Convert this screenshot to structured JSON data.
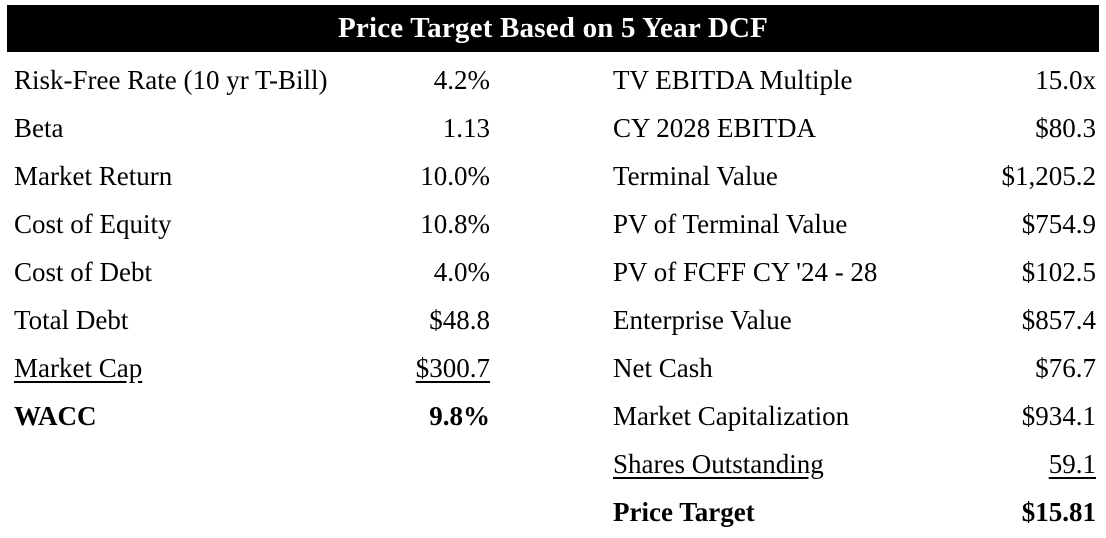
{
  "chart_data": {
    "type": "table",
    "title": "Price Target Based on 5 Year DCF",
    "layout_hint": "two side-by-side label/value column groups under a black title banner",
    "colors": {
      "header_bg": "#000000",
      "header_text": "#ffffff",
      "body_text": "#000000",
      "background": "#ffffff"
    },
    "left_section": {
      "rows": [
        {
          "label": "Risk-Free Rate (10 yr T-Bill)",
          "value": "4.2%",
          "emphasis": "normal"
        },
        {
          "label": "Beta",
          "value": "1.13",
          "emphasis": "normal"
        },
        {
          "label": "Market Return",
          "value": "10.0%",
          "emphasis": "normal"
        },
        {
          "label": "Cost of Equity",
          "value": "10.8%",
          "emphasis": "normal"
        },
        {
          "label": "Cost of Debt",
          "value": "4.0%",
          "emphasis": "normal"
        },
        {
          "label": "Total Debt",
          "value": "$48.8",
          "emphasis": "normal"
        },
        {
          "label": "Market Cap",
          "value": "$300.7",
          "emphasis": "underline"
        },
        {
          "label": "WACC",
          "value": "9.8%",
          "emphasis": "bold"
        }
      ]
    },
    "right_section": {
      "rows": [
        {
          "label": "TV EBITDA Multiple",
          "value": "15.0x",
          "emphasis": "normal"
        },
        {
          "label": "CY 2028 EBITDA",
          "value": "$80.3",
          "emphasis": "normal"
        },
        {
          "label": "Terminal Value",
          "value": "$1,205.2",
          "emphasis": "normal"
        },
        {
          "label": "PV of Terminal Value",
          "value": "$754.9",
          "emphasis": "normal"
        },
        {
          "label": "PV of FCFF CY '24 - 28",
          "value": "$102.5",
          "emphasis": "normal"
        },
        {
          "label": "Enterprise Value",
          "value": "$857.4",
          "emphasis": "normal"
        },
        {
          "label": "Net Cash",
          "value": "$76.7",
          "emphasis": "normal"
        },
        {
          "label": "Market Capitalization",
          "value": "$934.1",
          "emphasis": "normal"
        },
        {
          "label": "Shares Outstanding",
          "value": "59.1",
          "emphasis": "underline"
        },
        {
          "label": "Price Target",
          "value": "$15.81",
          "emphasis": "bold"
        }
      ]
    }
  }
}
